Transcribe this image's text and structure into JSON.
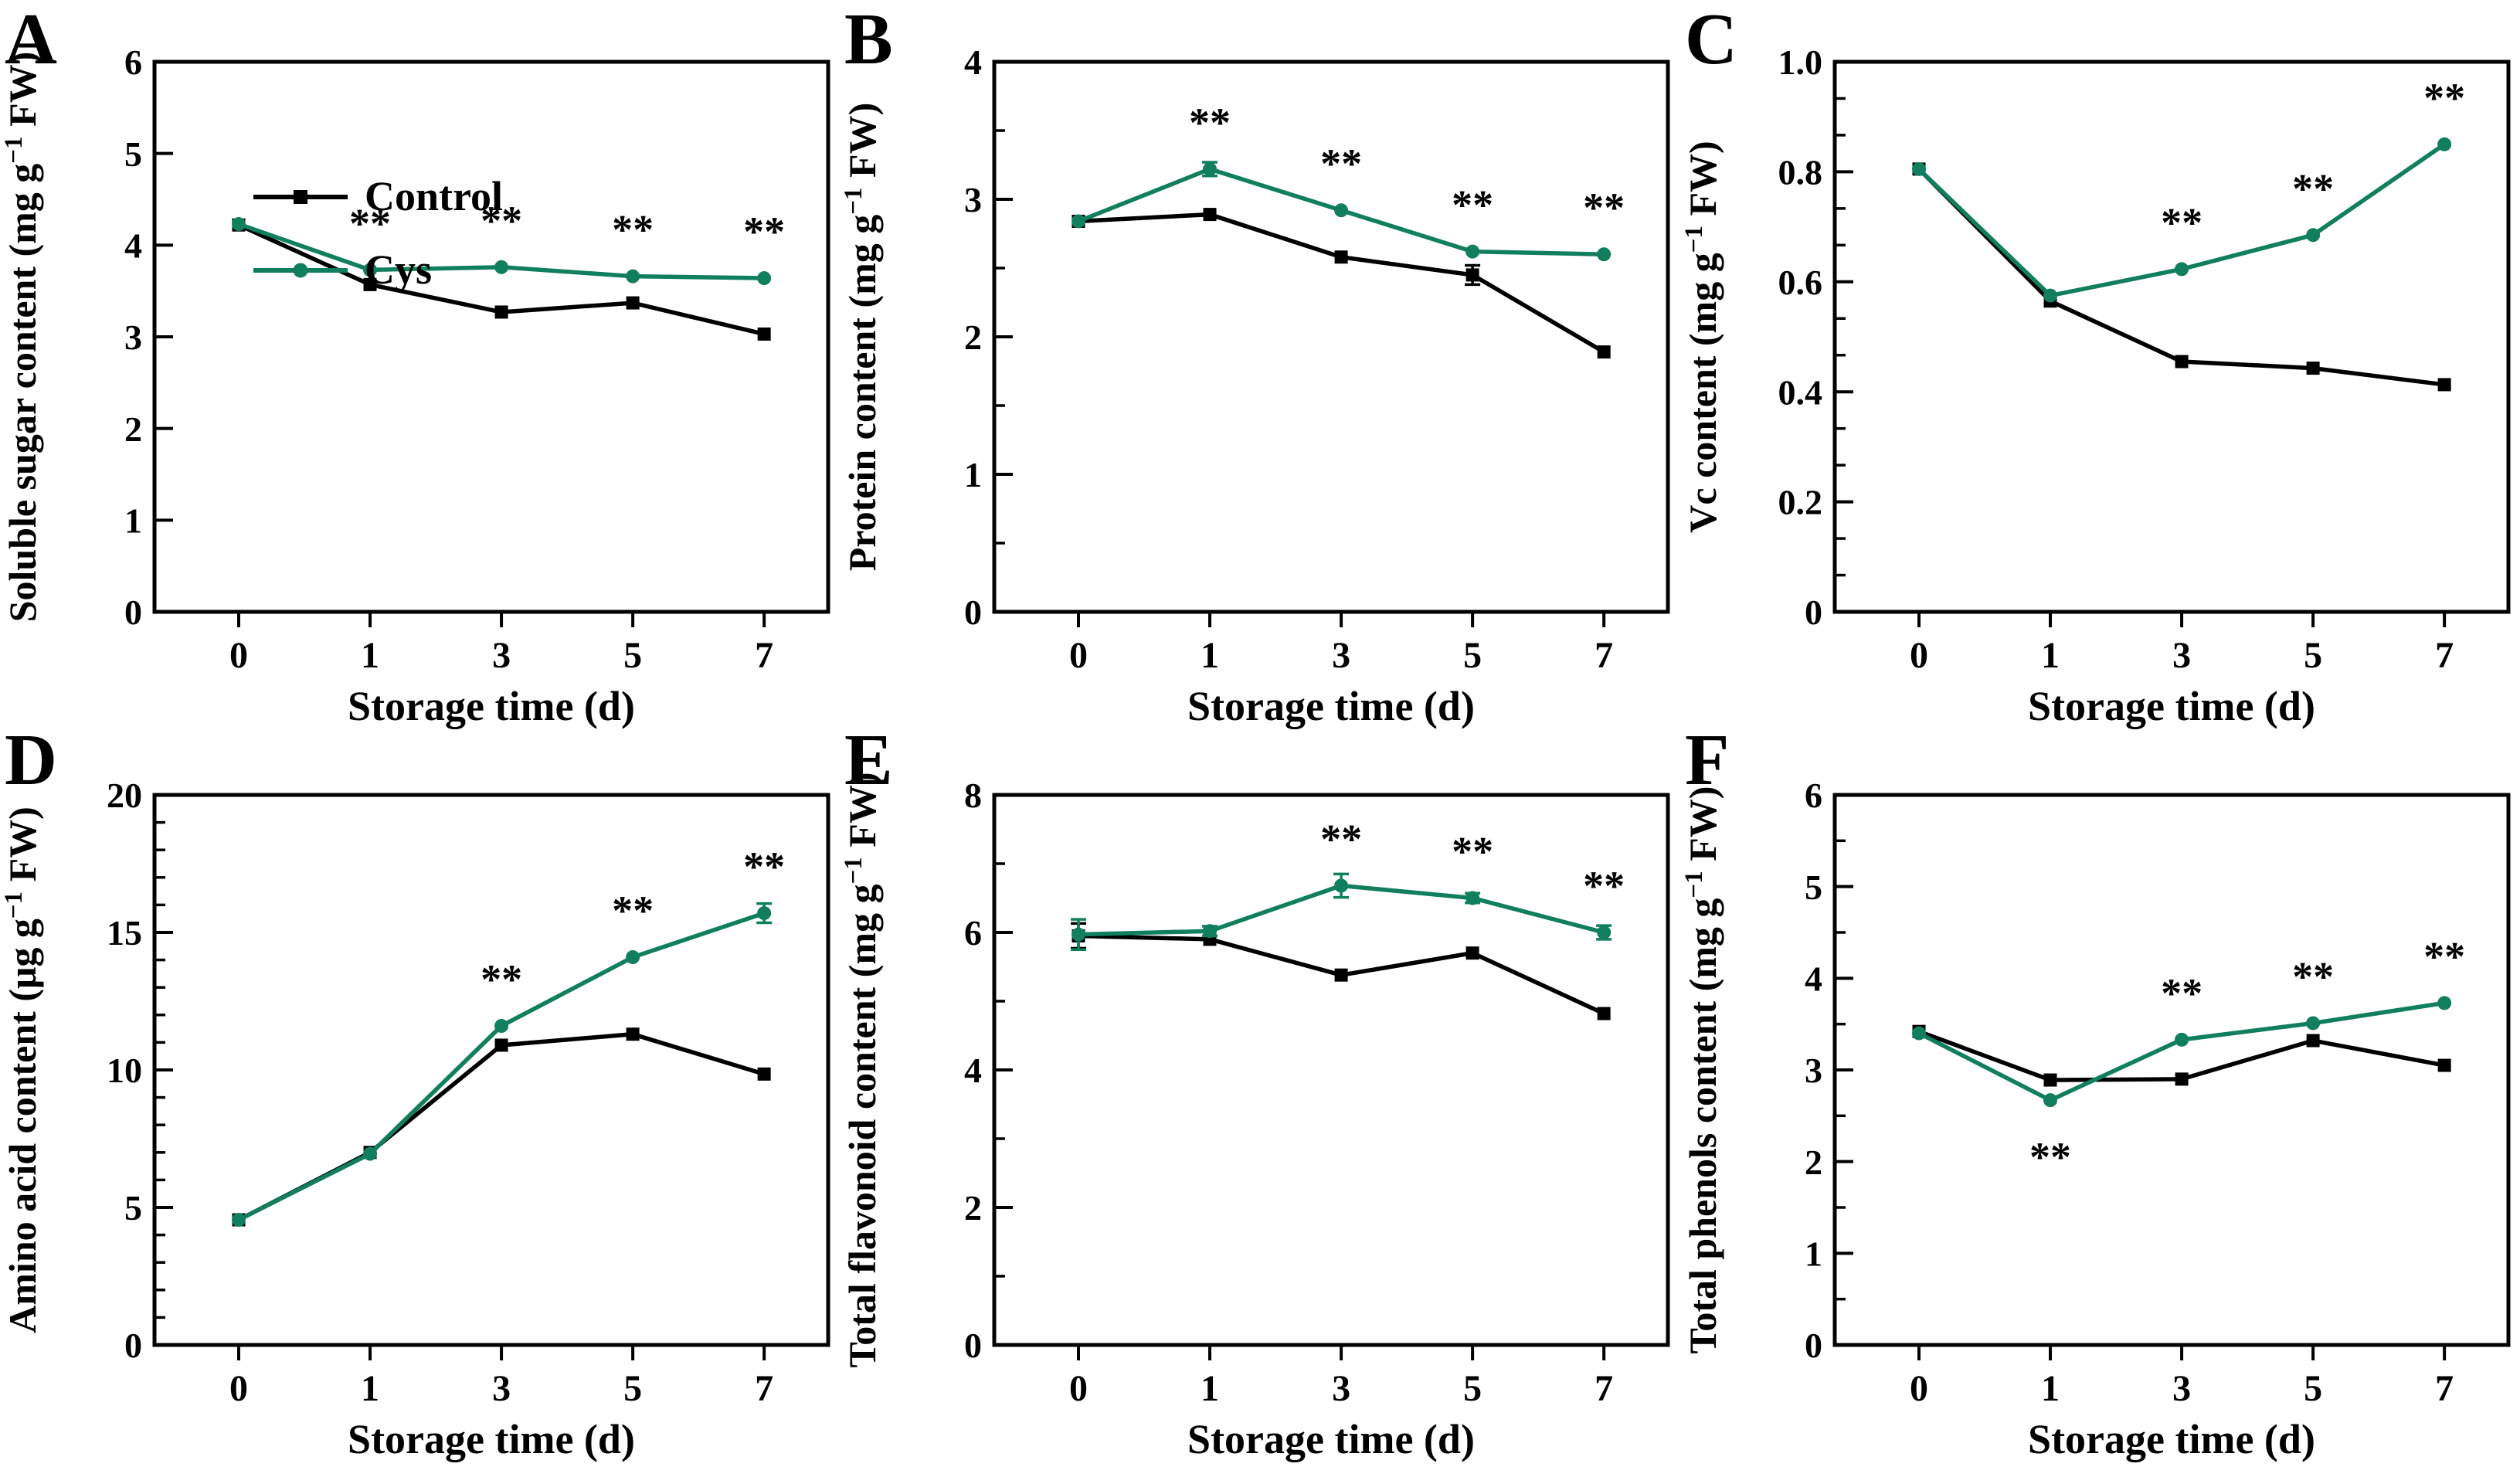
{
  "figure": {
    "xlabel": "Storage time (d)",
    "x_categories": [
      0,
      1,
      3,
      5,
      7
    ],
    "sig_symbol": "**",
    "colors": {
      "control": "#000000",
      "cys": "#117f5e"
    },
    "legend": {
      "items": [
        "Control",
        "Cys"
      ]
    }
  },
  "chart_data": [
    {
      "letter": "A",
      "type": "line",
      "ylabel": {
        "pre": "Soluble sugar content (mg g",
        "sup": "−1",
        "post": " FW)"
      },
      "ylim": [
        0,
        6
      ],
      "ytick_step": 1,
      "ytick_decimals": 0,
      "minor_ticks": 0,
      "legend": true,
      "categories": [
        0,
        1,
        3,
        5,
        7
      ],
      "series": [
        {
          "name": "Control",
          "marker": "square",
          "values": [
            4.22,
            3.57,
            3.27,
            3.37,
            3.03
          ],
          "err": [
            0,
            0,
            0,
            0,
            0
          ]
        },
        {
          "name": "Cys",
          "marker": "circle",
          "values": [
            4.23,
            3.73,
            3.76,
            3.66,
            3.64
          ],
          "err": [
            0,
            0,
            0,
            0,
            0
          ]
        }
      ],
      "sig": [
        {
          "day": 1
        },
        {
          "day": 3
        },
        {
          "day": 5
        },
        {
          "day": 7
        }
      ]
    },
    {
      "letter": "B",
      "type": "line",
      "ylabel": {
        "pre": "Protein content (mg g",
        "sup": "−1",
        "post": " FW)"
      },
      "ylim": [
        0,
        4
      ],
      "ytick_step": 1,
      "ytick_decimals": 0,
      "minor_ticks": 1,
      "legend": false,
      "categories": [
        0,
        1,
        3,
        5,
        7
      ],
      "series": [
        {
          "name": "Control",
          "marker": "square",
          "values": [
            2.84,
            2.89,
            2.58,
            2.45,
            1.89
          ],
          "err": [
            0,
            0,
            0,
            0.07,
            0
          ]
        },
        {
          "name": "Cys",
          "marker": "circle",
          "values": [
            2.84,
            3.22,
            2.92,
            2.62,
            2.6
          ],
          "err": [
            0,
            0.05,
            0,
            0,
            0
          ]
        }
      ],
      "sig": [
        {
          "day": 1
        },
        {
          "day": 3
        },
        {
          "day": 5
        },
        {
          "day": 7
        }
      ]
    },
    {
      "letter": "C",
      "type": "line",
      "ylabel": {
        "pre": "Vc content (mg g",
        "sup": "−1",
        "post": " FW)"
      },
      "ylim": [
        0,
        1
      ],
      "ytick_step": 0.2,
      "ytick_decimals": 1,
      "minor_ticks": 2,
      "legend": false,
      "categories": [
        0,
        1,
        3,
        5,
        7
      ],
      "series": [
        {
          "name": "Control",
          "marker": "square",
          "values": [
            0.805,
            0.565,
            0.455,
            0.443,
            0.413
          ],
          "err": [
            0,
            0,
            0,
            0,
            0
          ]
        },
        {
          "name": "Cys",
          "marker": "circle",
          "values": [
            0.805,
            0.575,
            0.623,
            0.685,
            0.85
          ],
          "err": [
            0,
            0,
            0,
            0,
            0
          ]
        }
      ],
      "sig": [
        {
          "day": 3
        },
        {
          "day": 5
        },
        {
          "day": 7
        }
      ]
    },
    {
      "letter": "D",
      "type": "line",
      "ylabel": {
        "pre": "Amino acid content (μg g",
        "sup": "−1",
        "post": " FW)"
      },
      "ylim": [
        0,
        20
      ],
      "ytick_step": 5,
      "ytick_decimals": 0,
      "minor_ticks": 4,
      "legend": false,
      "categories": [
        0,
        1,
        3,
        5,
        7
      ],
      "series": [
        {
          "name": "Control",
          "marker": "square",
          "values": [
            4.55,
            7.0,
            10.9,
            11.3,
            9.85
          ],
          "err": [
            0,
            0,
            0,
            0,
            0
          ]
        },
        {
          "name": "Cys",
          "marker": "circle",
          "values": [
            4.55,
            6.95,
            11.6,
            14.1,
            15.7
          ],
          "err": [
            0,
            0,
            0,
            0,
            0.35
          ]
        }
      ],
      "sig": [
        {
          "day": 3
        },
        {
          "day": 5
        },
        {
          "day": 7
        }
      ]
    },
    {
      "letter": "E",
      "type": "line",
      "ylabel": {
        "pre": "Total flavonoid content (mg g",
        "sup": "−1",
        "post": " FW)"
      },
      "ylim": [
        0,
        8
      ],
      "ytick_step": 2,
      "ytick_decimals": 0,
      "minor_ticks": 1,
      "legend": false,
      "categories": [
        0,
        1,
        3,
        5,
        7
      ],
      "series": [
        {
          "name": "Control",
          "marker": "square",
          "values": [
            5.95,
            5.9,
            5.38,
            5.7,
            4.82
          ],
          "err": [
            0.18,
            0,
            0,
            0,
            0
          ]
        },
        {
          "name": "Cys",
          "marker": "circle",
          "values": [
            5.97,
            6.02,
            6.68,
            6.5,
            6.0
          ],
          "err": [
            0.22,
            0.07,
            0.17,
            0.07,
            0.1
          ]
        }
      ],
      "sig": [
        {
          "day": 3
        },
        {
          "day": 5
        },
        {
          "day": 7
        }
      ]
    },
    {
      "letter": "F",
      "type": "line",
      "ylabel": {
        "pre": "Total phenols content (mg g",
        "sup": "−1",
        "post": " FW)"
      },
      "ylim": [
        0,
        6
      ],
      "ytick_step": 1,
      "ytick_decimals": 0,
      "minor_ticks": 1,
      "legend": false,
      "categories": [
        0,
        1,
        3,
        5,
        7
      ],
      "series": [
        {
          "name": "Control",
          "marker": "square",
          "values": [
            3.42,
            2.89,
            2.9,
            3.32,
            3.05
          ],
          "err": [
            0,
            0,
            0,
            0,
            0
          ]
        },
        {
          "name": "Cys",
          "marker": "circle",
          "values": [
            3.4,
            2.67,
            3.33,
            3.51,
            3.73
          ],
          "err": [
            0,
            0,
            0,
            0,
            0
          ]
        }
      ],
      "sig": [
        {
          "day": 1,
          "below": true
        },
        {
          "day": 3
        },
        {
          "day": 5
        },
        {
          "day": 7
        }
      ]
    }
  ]
}
